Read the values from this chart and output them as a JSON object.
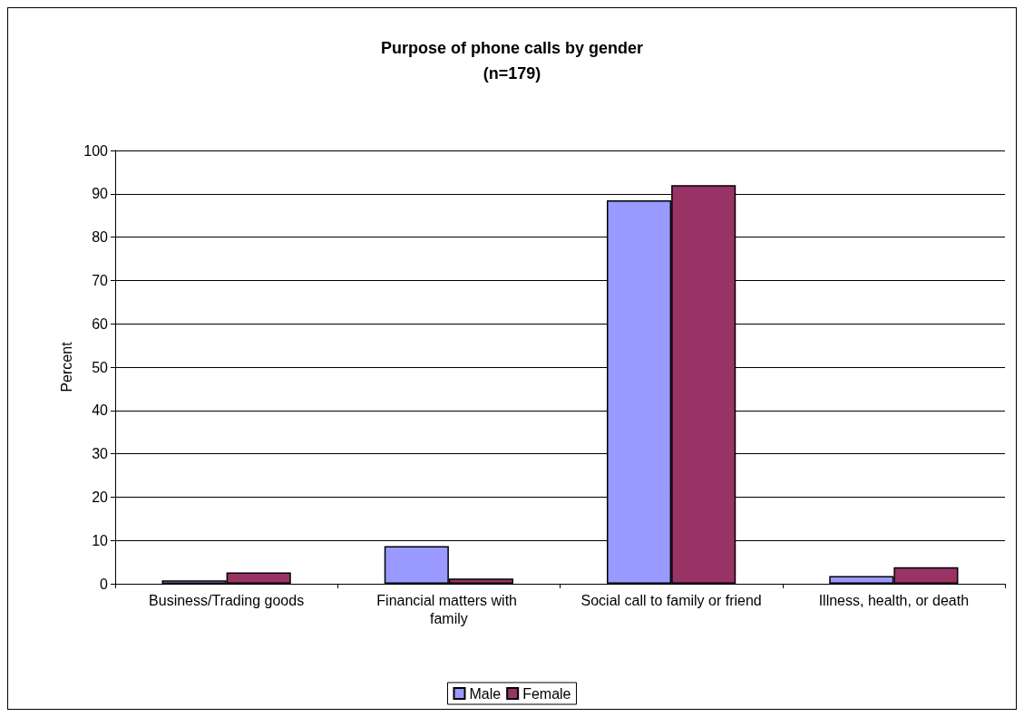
{
  "chart_data": {
    "type": "bar",
    "title": "Purpose of phone calls by gender\n(n=179)",
    "ylabel": "Percent",
    "categories": [
      "Business/Trading goods",
      "Financial matters with family",
      "Social call to family or friend",
      "Illness, health, or death"
    ],
    "series": [
      {
        "name": "Male",
        "color": "#9999ff",
        "values": [
          0.8,
          8.7,
          88.5,
          1.8
        ]
      },
      {
        "name": "Female",
        "color": "#993366",
        "values": [
          2.6,
          1.2,
          92.0,
          3.8
        ]
      }
    ],
    "ylim": [
      0,
      100
    ],
    "yticks": [
      0,
      10,
      20,
      30,
      40,
      50,
      60,
      70,
      80,
      90,
      100
    ],
    "grid": "y",
    "legend": "bottom"
  }
}
